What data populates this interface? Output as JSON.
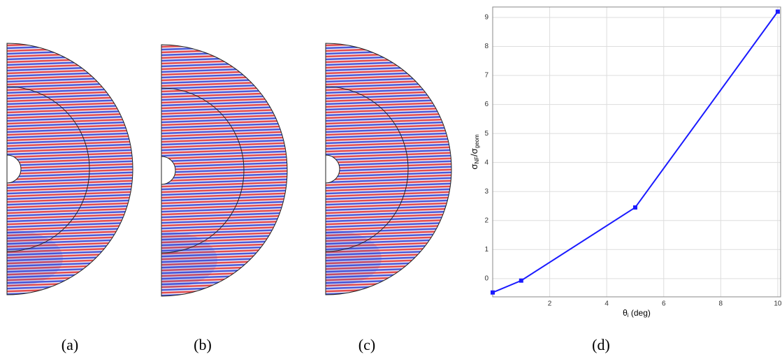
{
  "panel_labels": [
    "(a)",
    "(b)",
    "(c)",
    "(d)"
  ],
  "chart_data": {
    "type": "line",
    "ylabel_parts": [
      "σ",
      "NF",
      "/σ",
      "geom"
    ],
    "xlabel_parts": [
      "θ",
      "i",
      " (deg)"
    ],
    "x": [
      0,
      1,
      5,
      10
    ],
    "series": [
      {
        "color": "#1a1aff",
        "values": [
          -0.48,
          -0.07,
          2.45,
          9.2
        ]
      }
    ],
    "xlim": [
      0,
      10.1
    ],
    "xticks": [
      2,
      4,
      6,
      8,
      10
    ],
    "ylim": [
      -0.63,
      9.36
    ],
    "yticks": [
      0,
      1,
      2,
      3,
      4,
      5,
      6,
      7,
      8,
      9
    ],
    "grid": true
  }
}
